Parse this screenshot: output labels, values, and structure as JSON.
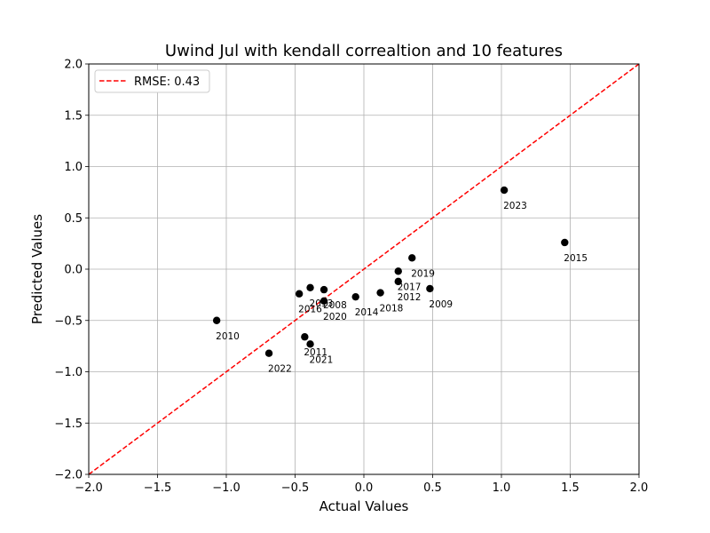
{
  "chart_data": {
    "type": "scatter",
    "title": "Uwind Jul with kendall correaltion and 10 features",
    "xlabel": "Actual Values",
    "ylabel": "Predicted Values",
    "xlim": [
      -2.0,
      2.0
    ],
    "ylim": [
      -2.0,
      2.0
    ],
    "xticks": [
      -2.0,
      -1.5,
      -1.0,
      -0.5,
      0.0,
      0.5,
      1.0,
      1.5,
      2.0
    ],
    "yticks": [
      -2.0,
      -1.5,
      -1.0,
      -0.5,
      0.0,
      0.5,
      1.0,
      1.5,
      2.0
    ],
    "xtick_labels": [
      "−2.0",
      "−1.5",
      "−1.0",
      "−0.5",
      "0.0",
      "0.5",
      "1.0",
      "1.5",
      "2.0"
    ],
    "ytick_labels": [
      "−2.0",
      "−1.5",
      "−1.0",
      "−0.5",
      "0.0",
      "0.5",
      "1.0",
      "1.5",
      "2.0"
    ],
    "grid": true,
    "legend": {
      "placement": "upper-left",
      "entries": [
        {
          "label": "RMSE: 0.43",
          "color": "#ff0000",
          "style": "dashed"
        }
      ]
    },
    "reference_line": {
      "x": [
        -2.0,
        2.0
      ],
      "y": [
        -2.0,
        2.0
      ],
      "color": "#ff0000"
    },
    "marker_color": "#000000",
    "points": [
      {
        "label": "2009",
        "x": 0.48,
        "y": -0.19
      },
      {
        "label": "2010",
        "x": -1.07,
        "y": -0.5
      },
      {
        "label": "2011",
        "x": -0.43,
        "y": -0.66
      },
      {
        "label": "2012",
        "x": 0.25,
        "y": -0.12
      },
      {
        "label": "2013",
        "x": -0.39,
        "y": -0.18
      },
      {
        "label": "2014",
        "x": -0.06,
        "y": -0.27
      },
      {
        "label": "2015",
        "x": 1.46,
        "y": 0.26
      },
      {
        "label": "2016",
        "x": -0.47,
        "y": -0.24
      },
      {
        "label": "2017",
        "x": 0.25,
        "y": -0.02
      },
      {
        "label": "2018",
        "x": 0.12,
        "y": -0.23
      },
      {
        "label": "2019",
        "x": 0.35,
        "y": 0.11
      },
      {
        "label": "2020",
        "x": -0.29,
        "y": -0.31
      },
      {
        "label": "2021",
        "x": -0.39,
        "y": -0.73
      },
      {
        "label": "2022",
        "x": -0.69,
        "y": -0.82
      },
      {
        "label": "2023",
        "x": 1.02,
        "y": 0.77
      },
      {
        "label": "2008",
        "x": -0.29,
        "y": -0.2
      }
    ]
  }
}
